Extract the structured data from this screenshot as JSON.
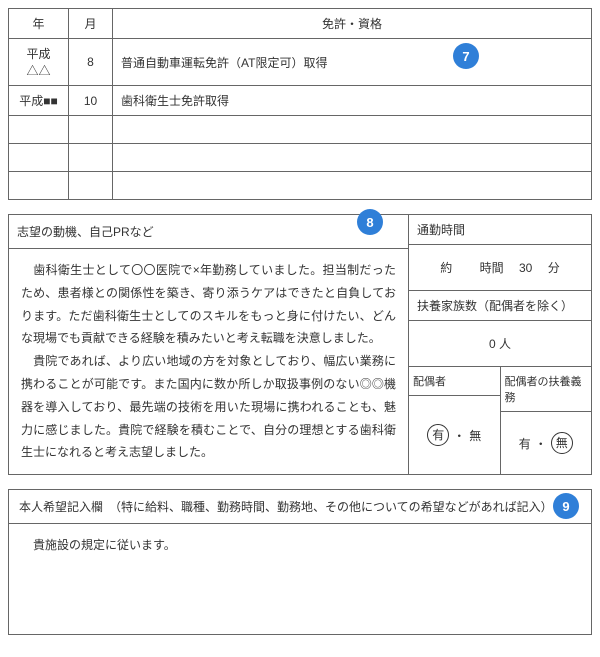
{
  "licenses": {
    "headers": {
      "year": "年",
      "month": "月",
      "title": "免許・資格"
    },
    "rows": [
      {
        "year": "平成△△",
        "month": "8",
        "content": "普通自動車運転免許（AT限定可）取得"
      },
      {
        "year": "平成■■",
        "month": "10",
        "content": "歯科衛生士免許取得"
      }
    ],
    "badge": "7"
  },
  "motivation": {
    "heading": "志望の動機、自己PRなど",
    "badge": "8",
    "para1": "　歯科衛生士として〇〇医院で×年勤務していました。担当制だったため、患者様との関係性を築き、寄り添うケアはできたと自負しております。ただ歯科衛生士としてのスキルをもっと身に付けたい、どんな現場でも貢献できる経験を積みたいと考え転職を決意しました。",
    "para2": "　貴院であれば、より広い地域の方を対象としており、幅広い業務に携わることが可能です。また国内に数か所しか取扱事例のない◎◎機器を導入しており、最先端の技術を用いた現場に携われることも、魅力に感じました。貴院で経験を積むことで、自分の理想とする歯科衛生士になれると考え志望しました。"
  },
  "side": {
    "commute_label": "通勤時間",
    "commute_value": {
      "about": "約",
      "hour_label": "時間",
      "min_val": "30",
      "min_label": "分"
    },
    "dependents_label": "扶養家族数（配偶者を除く）",
    "dependents_value": "0",
    "dependents_unit": "人",
    "spouse": {
      "label": "配偶者",
      "yes": "有",
      "sep": "・",
      "no": "無"
    },
    "spouse_duty": {
      "label": "配偶者の扶養義務",
      "yes": "有",
      "sep": "・",
      "no": "無"
    }
  },
  "wishes": {
    "heading": "本人希望記入欄　（特に給料、職種、勤務時間、勤務地、その他についての希望などがあれば記入）",
    "badge": "9",
    "body": "　貴施設の規定に従います。"
  },
  "colors": {
    "border": "#666666",
    "badge_bg": "#2f7fd8",
    "badge_fg": "#ffffff",
    "text": "#333333"
  }
}
